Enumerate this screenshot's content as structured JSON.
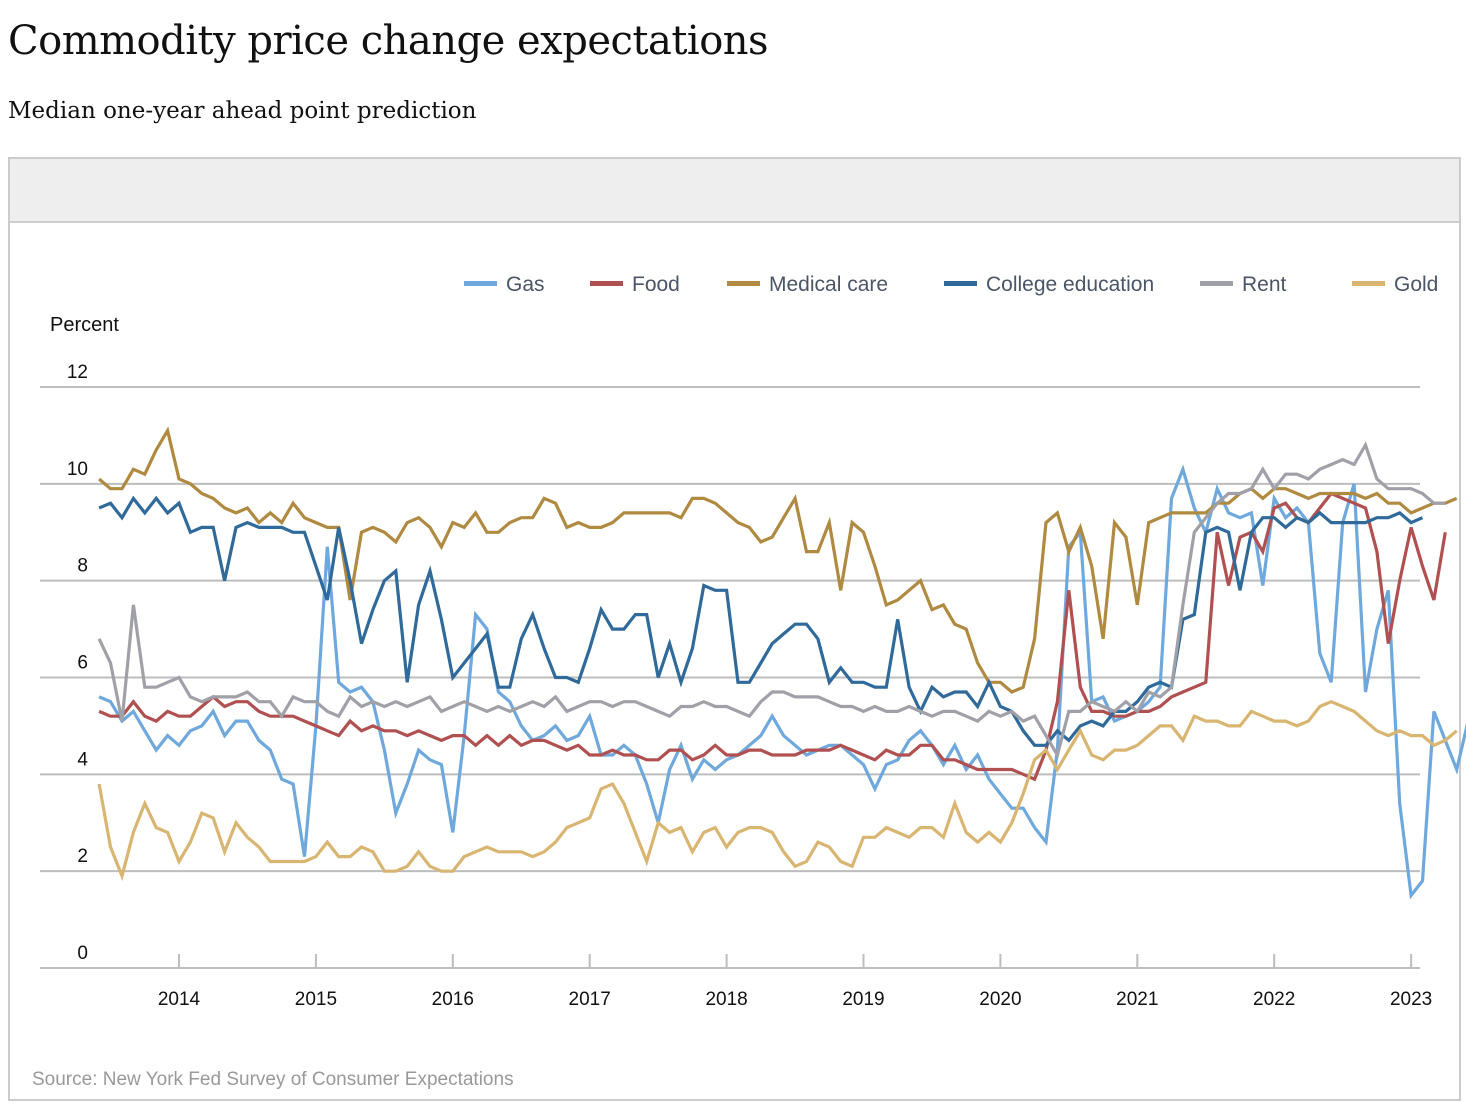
{
  "header": {
    "title": "Commodity price change expectations",
    "subtitle": "Median one-year ahead point prediction"
  },
  "footer": {
    "source": "Source: New York Fed Survey of Consumer Expectations"
  },
  "chart_data": {
    "type": "line",
    "title": "Commodity price change expectations",
    "subtitle": "Median one-year ahead point prediction",
    "xlabel": "",
    "ylabel": "Percent",
    "ylim": [
      0,
      12
    ],
    "yticks": [
      "0",
      "2",
      "4",
      "6",
      "8",
      "10",
      "12"
    ],
    "xticks": [
      "2014",
      "2015",
      "2016",
      "2017",
      "2018",
      "2019",
      "2020",
      "2021",
      "2022",
      "2023"
    ],
    "grid": true,
    "legend_position": "top-right",
    "x_start": "2013-06",
    "x_end": "2023-01",
    "frequency": "monthly",
    "series": [
      {
        "name": "Gas",
        "color": "#6fa8dc",
        "values": [
          5.6,
          5.5,
          5.1,
          5.3,
          4.9,
          4.5,
          4.8,
          4.6,
          4.9,
          5.0,
          5.3,
          4.8,
          5.1,
          5.1,
          4.7,
          4.5,
          3.9,
          3.8,
          2.3,
          5.0,
          8.7,
          5.9,
          5.7,
          5.8,
          5.5,
          4.5,
          3.2,
          3.8,
          4.5,
          4.3,
          4.2,
          2.8,
          4.8,
          7.3,
          7.0,
          5.7,
          5.5,
          5.0,
          4.7,
          4.8,
          5.0,
          4.7,
          4.8,
          5.2,
          4.4,
          4.4,
          4.6,
          4.4,
          3.8,
          3.0,
          4.1,
          4.6,
          3.9,
          4.3,
          4.1,
          4.3,
          4.4,
          4.6,
          4.8,
          5.2,
          4.8,
          4.6,
          4.4,
          4.5,
          4.6,
          4.6,
          4.4,
          4.2,
          3.7,
          4.2,
          4.3,
          4.7,
          4.9,
          4.6,
          4.2,
          4.6,
          4.1,
          4.4,
          3.9,
          3.6,
          3.3,
          3.3,
          2.9,
          2.6,
          4.5,
          8.7,
          9.0,
          5.5,
          5.6,
          5.1,
          5.2,
          5.3,
          5.5,
          5.8,
          9.7,
          10.3,
          9.5,
          9.0,
          9.9,
          9.4,
          9.3,
          9.4,
          7.9,
          9.7,
          9.3,
          9.5,
          9.2,
          6.5,
          5.9,
          9.2,
          10.0,
          5.7,
          7.0,
          7.8,
          3.4,
          1.5,
          1.8,
          5.3,
          4.7,
          4.1,
          5.1
        ]
      },
      {
        "name": "Food",
        "color": "#b05050",
        "values": [
          5.3,
          5.2,
          5.2,
          5.5,
          5.2,
          5.1,
          5.3,
          5.2,
          5.2,
          5.4,
          5.6,
          5.4,
          5.5,
          5.5,
          5.3,
          5.2,
          5.2,
          5.2,
          5.1,
          5.0,
          4.9,
          4.8,
          5.1,
          4.9,
          5.0,
          4.9,
          4.9,
          4.8,
          4.9,
          4.8,
          4.7,
          4.8,
          4.8,
          4.6,
          4.8,
          4.6,
          4.8,
          4.6,
          4.7,
          4.7,
          4.6,
          4.5,
          4.6,
          4.4,
          4.4,
          4.5,
          4.4,
          4.4,
          4.3,
          4.3,
          4.5,
          4.5,
          4.3,
          4.4,
          4.6,
          4.4,
          4.4,
          4.5,
          4.5,
          4.4,
          4.4,
          4.4,
          4.5,
          4.5,
          4.5,
          4.6,
          4.5,
          4.4,
          4.3,
          4.5,
          4.4,
          4.4,
          4.6,
          4.6,
          4.3,
          4.3,
          4.2,
          4.1,
          4.1,
          4.1,
          4.1,
          4.0,
          3.9,
          4.5,
          5.5,
          7.8,
          5.8,
          5.3,
          5.3,
          5.2,
          5.2,
          5.3,
          5.3,
          5.4,
          5.6,
          5.7,
          5.8,
          5.9,
          9.0,
          7.9,
          8.9,
          9.0,
          8.6,
          9.5,
          9.6,
          9.3,
          9.2,
          9.5,
          9.8,
          9.7,
          9.6,
          9.5,
          8.6,
          6.7,
          8.0,
          9.1,
          8.3,
          7.6,
          9.0
        ]
      },
      {
        "name": "Medical care",
        "color": "#b08a40",
        "values": [
          10.1,
          9.9,
          9.9,
          10.3,
          10.2,
          10.7,
          11.1,
          10.1,
          10.0,
          9.8,
          9.7,
          9.5,
          9.4,
          9.5,
          9.2,
          9.4,
          9.2,
          9.6,
          9.3,
          9.2,
          9.1,
          9.1,
          7.6,
          9.0,
          9.1,
          9.0,
          8.8,
          9.2,
          9.3,
          9.1,
          8.7,
          9.2,
          9.1,
          9.4,
          9.0,
          9.0,
          9.2,
          9.3,
          9.3,
          9.7,
          9.6,
          9.1,
          9.2,
          9.1,
          9.1,
          9.2,
          9.4,
          9.4,
          9.4,
          9.4,
          9.4,
          9.3,
          9.7,
          9.7,
          9.6,
          9.4,
          9.2,
          9.1,
          8.8,
          8.9,
          9.3,
          9.7,
          8.6,
          8.6,
          9.2,
          7.8,
          9.2,
          9.0,
          8.3,
          7.5,
          7.6,
          7.8,
          8.0,
          7.4,
          7.5,
          7.1,
          7.0,
          6.3,
          5.9,
          5.9,
          5.7,
          5.8,
          6.8,
          9.2,
          9.4,
          8.6,
          9.1,
          8.3,
          6.8,
          9.2,
          8.9,
          7.5,
          9.2,
          9.3,
          9.4,
          9.4,
          9.4,
          9.4,
          9.6,
          9.6,
          9.8,
          9.9,
          9.7,
          9.9,
          9.9,
          9.8,
          9.7,
          9.8,
          9.8,
          9.8,
          9.8,
          9.7,
          9.8,
          9.6,
          9.6,
          9.4,
          9.5,
          9.6,
          9.6,
          9.7
        ]
      },
      {
        "name": "College education",
        "color": "#2f6a9a",
        "values": [
          9.5,
          9.6,
          9.3,
          9.7,
          9.4,
          9.7,
          9.4,
          9.6,
          9.0,
          9.1,
          9.1,
          8.0,
          9.1,
          9.2,
          9.1,
          9.1,
          9.1,
          9.0,
          9.0,
          8.3,
          7.6,
          9.1,
          8.0,
          6.7,
          7.4,
          8.0,
          8.2,
          5.9,
          7.5,
          8.2,
          7.2,
          6.0,
          6.3,
          6.6,
          6.9,
          5.8,
          5.8,
          6.8,
          7.3,
          6.6,
          6.0,
          6.0,
          5.9,
          6.6,
          7.4,
          7.0,
          7.0,
          7.3,
          7.3,
          6.0,
          6.7,
          5.9,
          6.6,
          7.9,
          7.8,
          7.8,
          5.9,
          5.9,
          6.3,
          6.7,
          6.9,
          7.1,
          7.1,
          6.8,
          5.9,
          6.2,
          5.9,
          5.9,
          5.8,
          5.8,
          7.2,
          5.8,
          5.3,
          5.8,
          5.6,
          5.7,
          5.7,
          5.4,
          5.9,
          5.4,
          5.3,
          4.9,
          4.6,
          4.6,
          4.9,
          4.7,
          5.0,
          5.1,
          5.0,
          5.3,
          5.3,
          5.5,
          5.8,
          5.9,
          5.8,
          7.2,
          7.3,
          9.0,
          9.1,
          9.0,
          7.8,
          9.0,
          9.3,
          9.3,
          9.1,
          9.3,
          9.2,
          9.4,
          9.2,
          9.2,
          9.2,
          9.2,
          9.3,
          9.3,
          9.4,
          9.2,
          9.3
        ]
      },
      {
        "name": "Rent",
        "color": "#a0a0a8",
        "values": [
          6.8,
          6.3,
          5.1,
          7.5,
          5.8,
          5.8,
          5.9,
          6.0,
          5.6,
          5.5,
          5.6,
          5.6,
          5.6,
          5.7,
          5.5,
          5.5,
          5.2,
          5.6,
          5.5,
          5.5,
          5.3,
          5.2,
          5.6,
          5.4,
          5.5,
          5.4,
          5.5,
          5.4,
          5.5,
          5.6,
          5.3,
          5.4,
          5.5,
          5.4,
          5.3,
          5.4,
          5.3,
          5.4,
          5.5,
          5.4,
          5.6,
          5.3,
          5.4,
          5.5,
          5.5,
          5.4,
          5.5,
          5.5,
          5.4,
          5.3,
          5.2,
          5.4,
          5.4,
          5.5,
          5.4,
          5.4,
          5.3,
          5.2,
          5.5,
          5.7,
          5.7,
          5.6,
          5.6,
          5.6,
          5.5,
          5.4,
          5.4,
          5.3,
          5.4,
          5.3,
          5.3,
          5.4,
          5.3,
          5.2,
          5.3,
          5.3,
          5.2,
          5.1,
          5.3,
          5.2,
          5.3,
          5.1,
          5.2,
          4.8,
          4.4,
          5.3,
          5.3,
          5.5,
          5.4,
          5.3,
          5.5,
          5.3,
          5.7,
          5.6,
          5.8,
          7.5,
          9.0,
          9.3,
          9.6,
          9.8,
          9.8,
          9.9,
          10.3,
          9.9,
          10.2,
          10.2,
          10.1,
          10.3,
          10.4,
          10.5,
          10.4,
          10.8,
          10.1,
          9.9,
          9.9,
          9.9,
          9.8,
          9.6,
          9.6
        ]
      },
      {
        "name": "Gold",
        "color": "#d9b572",
        "values": [
          3.8,
          2.5,
          1.9,
          2.8,
          3.4,
          2.9,
          2.8,
          2.2,
          2.6,
          3.2,
          3.1,
          2.4,
          3.0,
          2.7,
          2.5,
          2.2,
          2.2,
          2.2,
          2.2,
          2.3,
          2.6,
          2.3,
          2.3,
          2.5,
          2.4,
          2.0,
          2.0,
          2.1,
          2.4,
          2.1,
          2.0,
          2.0,
          2.3,
          2.4,
          2.5,
          2.4,
          2.4,
          2.4,
          2.3,
          2.4,
          2.6,
          2.9,
          3.0,
          3.1,
          3.7,
          3.8,
          3.4,
          2.8,
          2.2,
          3.0,
          2.8,
          2.9,
          2.4,
          2.8,
          2.9,
          2.5,
          2.8,
          2.9,
          2.9,
          2.8,
          2.4,
          2.1,
          2.2,
          2.6,
          2.5,
          2.2,
          2.1,
          2.7,
          2.7,
          2.9,
          2.8,
          2.7,
          2.9,
          2.9,
          2.7,
          3.4,
          2.8,
          2.6,
          2.8,
          2.6,
          3.0,
          3.6,
          4.3,
          4.5,
          4.1,
          4.5,
          4.9,
          4.4,
          4.3,
          4.5,
          4.5,
          4.6,
          4.8,
          5.0,
          5.0,
          4.7,
          5.2,
          5.1,
          5.1,
          5.0,
          5.0,
          5.3,
          5.2,
          5.1,
          5.1,
          5.0,
          5.1,
          5.4,
          5.5,
          5.4,
          5.3,
          5.1,
          4.9,
          4.8,
          4.9,
          4.8,
          4.8,
          4.6,
          4.7,
          4.9
        ]
      }
    ]
  }
}
